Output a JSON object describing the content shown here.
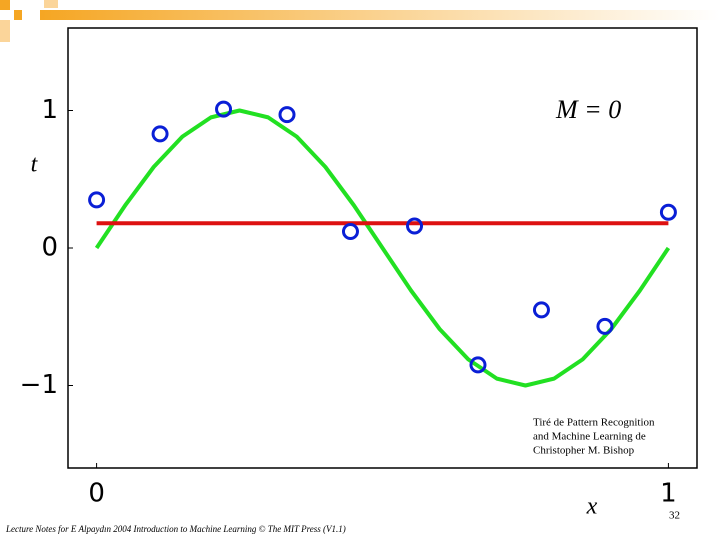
{
  "chart_data": {
    "type": "line",
    "annotation": "M = 0",
    "xlabel": "x",
    "ylabel": "t",
    "xlim": [
      -0.05,
      1.05
    ],
    "ylim": [
      -1.6,
      1.6
    ],
    "xticks": [
      0,
      1
    ],
    "yticks": [
      {
        "value": -1,
        "label": "−1"
      },
      0,
      1
    ],
    "credit": [
      "Tiré de Pattern Recognition",
      "and Machine Learning de",
      "Christopher M. Bishop"
    ],
    "series": [
      {
        "type": "line",
        "color": "#22e022",
        "x": [
          0,
          0.05,
          0.1,
          0.15,
          0.2,
          0.25,
          0.3,
          0.35,
          0.4,
          0.45,
          0.5,
          0.55,
          0.6,
          0.65,
          0.7,
          0.75,
          0.8,
          0.85,
          0.9,
          0.95,
          1
        ],
        "values": [
          0,
          0.31,
          0.59,
          0.81,
          0.95,
          1,
          0.95,
          0.81,
          0.59,
          0.31,
          0,
          -0.31,
          -0.59,
          -0.81,
          -0.95,
          -1,
          -0.95,
          -0.81,
          -0.59,
          -0.31,
          0
        ]
      },
      {
        "type": "line",
        "color": "#dd1111",
        "x": [
          0,
          1
        ],
        "values": [
          0.18,
          0.18
        ]
      },
      {
        "type": "scatter",
        "color": "#0a1fd6",
        "x": [
          0,
          0.111,
          0.222,
          0.333,
          0.444,
          0.556,
          0.667,
          0.778,
          0.889,
          1
        ],
        "values": [
          0.35,
          0.83,
          1.01,
          0.97,
          0.12,
          0.16,
          -0.85,
          -0.45,
          -0.57,
          0.26
        ]
      }
    ]
  },
  "footer": {
    "text": "Lecture Notes for E Alpaydın 2004 Introduction to Machine Learning © The MIT Press (V1.1)",
    "page": "32"
  }
}
